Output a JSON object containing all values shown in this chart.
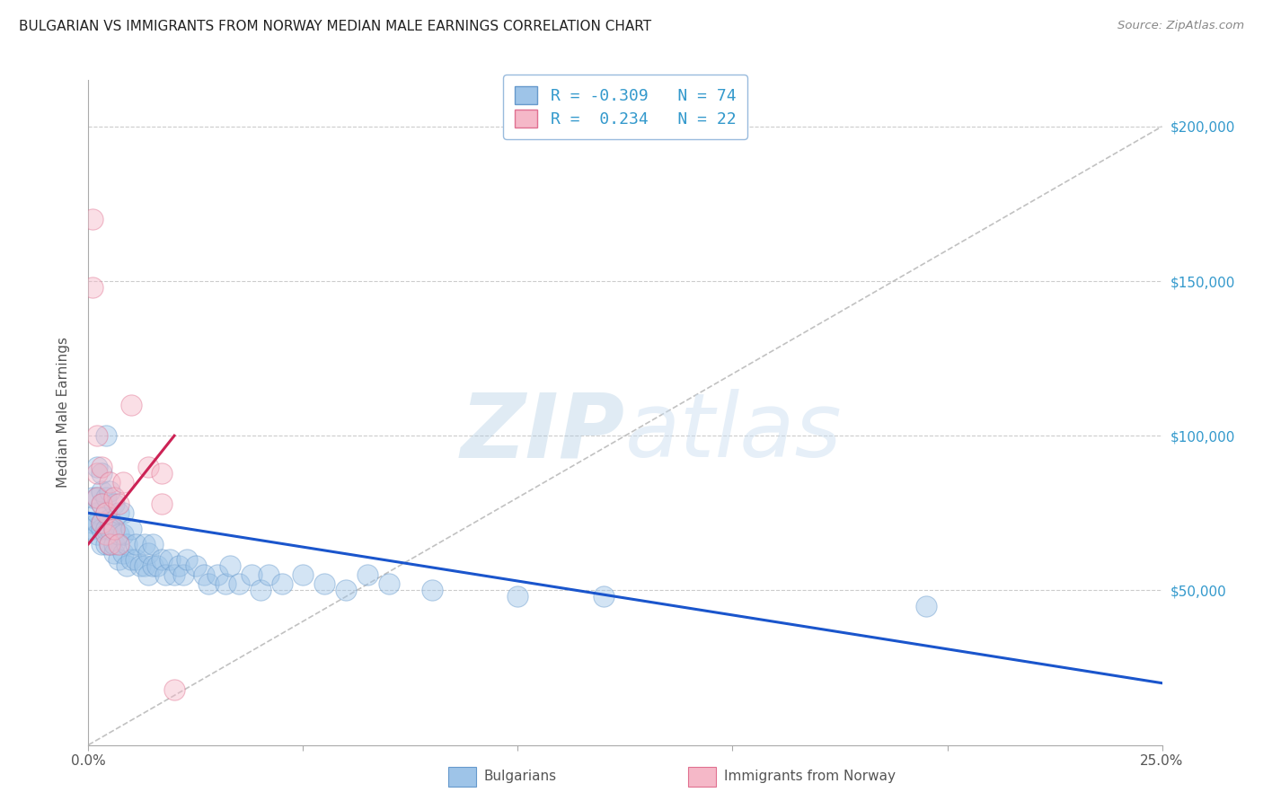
{
  "title": "BULGARIAN VS IMMIGRANTS FROM NORWAY MEDIAN MALE EARNINGS CORRELATION CHART",
  "source": "Source: ZipAtlas.com",
  "ylabel": "Median Male Earnings",
  "xlim": [
    0.0,
    0.25
  ],
  "ylim": [
    0,
    215000
  ],
  "ytick_values": [
    50000,
    100000,
    150000,
    200000
  ],
  "ytick_labels": [
    "$50,000",
    "$100,000",
    "$150,000",
    "$200,000"
  ],
  "blue_R": -0.309,
  "blue_N": 74,
  "pink_R": 0.234,
  "pink_N": 22,
  "blue_color": "#9ec4e8",
  "pink_color": "#f5b8c8",
  "blue_edge": "#6699cc",
  "pink_edge": "#e07090",
  "blue_line_color": "#1a55cc",
  "pink_line_color": "#cc2255",
  "ref_line_color": "#bbbbbb",
  "background_color": "#ffffff",
  "grid_color": "#cccccc",
  "title_color": "#222222",
  "axis_label_color": "#555555",
  "tick_color_y": "#3399cc",
  "tick_color_x": "#555555",
  "legend_text_color": "#3399cc",
  "blue_scatter_x": [
    0.001,
    0.001,
    0.001,
    0.002,
    0.002,
    0.002,
    0.002,
    0.002,
    0.003,
    0.003,
    0.003,
    0.003,
    0.003,
    0.003,
    0.004,
    0.004,
    0.004,
    0.004,
    0.004,
    0.005,
    0.005,
    0.005,
    0.005,
    0.006,
    0.006,
    0.006,
    0.006,
    0.007,
    0.007,
    0.007,
    0.008,
    0.008,
    0.008,
    0.009,
    0.009,
    0.01,
    0.01,
    0.011,
    0.011,
    0.012,
    0.013,
    0.013,
    0.014,
    0.014,
    0.015,
    0.015,
    0.016,
    0.017,
    0.018,
    0.019,
    0.02,
    0.021,
    0.022,
    0.023,
    0.025,
    0.027,
    0.028,
    0.03,
    0.032,
    0.033,
    0.035,
    0.038,
    0.04,
    0.042,
    0.045,
    0.05,
    0.055,
    0.06,
    0.065,
    0.07,
    0.08,
    0.1,
    0.12,
    0.195
  ],
  "blue_scatter_y": [
    70000,
    72000,
    80000,
    68000,
    72000,
    75000,
    80000,
    90000,
    65000,
    70000,
    72000,
    78000,
    82000,
    88000,
    65000,
    70000,
    75000,
    80000,
    100000,
    65000,
    70000,
    73000,
    82000,
    62000,
    65000,
    70000,
    78000,
    60000,
    68000,
    75000,
    62000,
    68000,
    75000,
    58000,
    65000,
    60000,
    70000,
    60000,
    65000,
    58000,
    58000,
    65000,
    55000,
    62000,
    58000,
    65000,
    58000,
    60000,
    55000,
    60000,
    55000,
    58000,
    55000,
    60000,
    58000,
    55000,
    52000,
    55000,
    52000,
    58000,
    52000,
    55000,
    50000,
    55000,
    52000,
    55000,
    52000,
    50000,
    55000,
    52000,
    50000,
    48000,
    48000,
    45000
  ],
  "pink_scatter_x": [
    0.001,
    0.001,
    0.002,
    0.002,
    0.002,
    0.003,
    0.003,
    0.003,
    0.004,
    0.004,
    0.005,
    0.005,
    0.006,
    0.006,
    0.007,
    0.007,
    0.008,
    0.01,
    0.014,
    0.017,
    0.017,
    0.02
  ],
  "pink_scatter_y": [
    170000,
    148000,
    80000,
    88000,
    100000,
    72000,
    78000,
    90000,
    68000,
    75000,
    65000,
    85000,
    70000,
    80000,
    65000,
    78000,
    85000,
    110000,
    90000,
    88000,
    78000,
    18000
  ],
  "blue_line_x": [
    0.0,
    0.25
  ],
  "blue_line_y": [
    75000,
    20000
  ],
  "pink_line_x": [
    0.0,
    0.02
  ],
  "pink_line_y": [
    65000,
    100000
  ],
  "ref_line_x": [
    0.0,
    0.25
  ],
  "ref_line_y": [
    0,
    200000
  ],
  "scatter_alpha": 0.45
}
